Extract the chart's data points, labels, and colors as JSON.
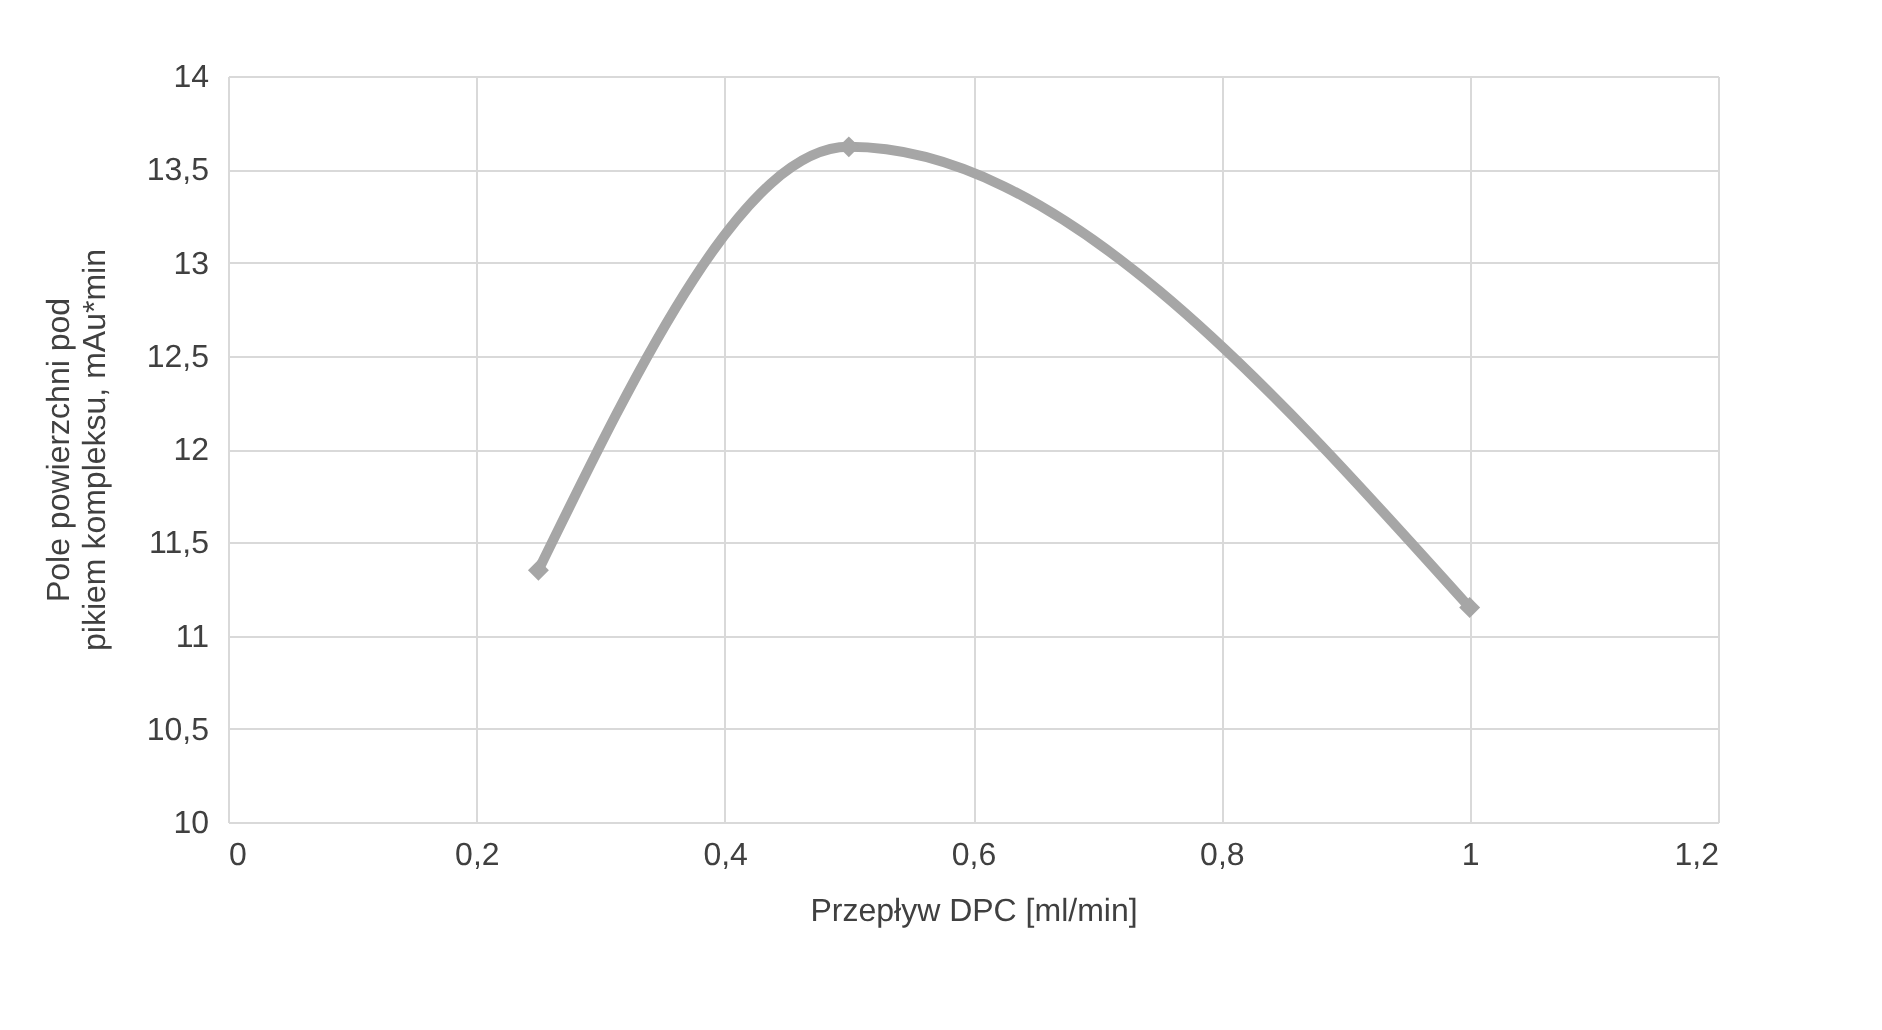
{
  "chart_data": {
    "type": "line",
    "xlabel": "Przepływ DPC [ml/min]",
    "ylabel": "Pole powierzchni pod pikiem kompleksu, mAu*min",
    "x": [
      0.25,
      0.5,
      1
    ],
    "series": [
      {
        "color": "#a6a6a6",
        "values": [
          11.35,
          13.62,
          11.15
        ]
      }
    ],
    "xlim": [
      0,
      1.2
    ],
    "xticks": [
      {
        "value": 0,
        "label": "0"
      },
      {
        "value": 0.2,
        "label": "0,2"
      },
      {
        "value": 0.4,
        "label": "0,4"
      },
      {
        "value": 0.6,
        "label": "0,6"
      },
      {
        "value": 0.8,
        "label": "0,8"
      },
      {
        "value": 1,
        "label": "1"
      },
      {
        "value": 1.2,
        "label": "1,2"
      }
    ],
    "ylim": [
      10,
      14
    ],
    "yticks": [
      {
        "value": 10,
        "label": "10"
      },
      {
        "value": 10.5,
        "label": "10,5"
      },
      {
        "value": 11,
        "label": "11"
      },
      {
        "value": 11.5,
        "label": "11,5"
      },
      {
        "value": 12,
        "label": "12"
      },
      {
        "value": 12.5,
        "label": "12,5"
      },
      {
        "value": 13,
        "label": "13"
      },
      {
        "value": 13.5,
        "label": "13,5"
      },
      {
        "value": 14,
        "label": "14"
      }
    ],
    "grid": true,
    "marker": "diamond",
    "line_style": "solid"
  }
}
